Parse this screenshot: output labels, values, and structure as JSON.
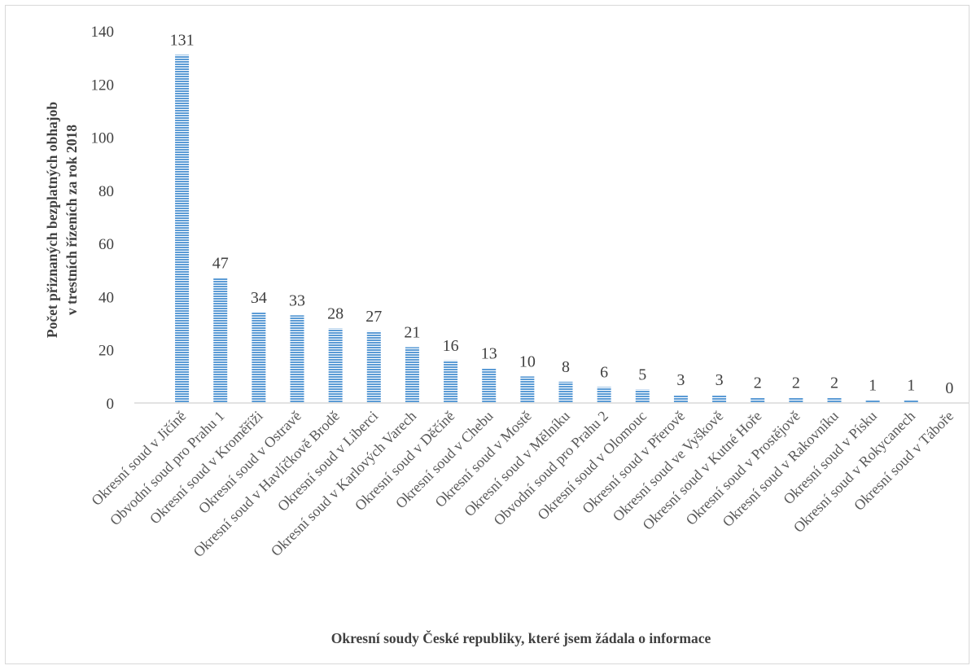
{
  "chart_data": {
    "type": "bar",
    "title": "",
    "ylabel": "Počet přiznaných bezplatných obhajob",
    "ylabel_line2": "v trestních řízeních za rok 2018",
    "xlabel": "Okresní soudy České republiky, které jsem žádala o informace",
    "ylim": [
      0,
      140
    ],
    "yticks": [
      "0",
      "20",
      "40",
      "60",
      "80",
      "100",
      "120",
      "140"
    ],
    "grid": false,
    "legend": "none",
    "bar_color": "#5b9bd5",
    "bar_pattern": "horizontal-stripes",
    "categories": [
      "Okresní soud v Jičíně",
      "Obvodní soud pro Prahu 1",
      "Okresní soud v Kroměříži",
      "Okresní soud v Ostravě",
      "Okresní soud v Havlíčkově Brodě",
      "Okresní soud v Liberci",
      "Okresní soud v Karlových Varech",
      "Okresní soud v Děčíně",
      "Okresní soud v Chebu",
      "Okresní soud v Mostě",
      "Okresní soud v Mělníku",
      "Obvodní soud pro Prahu 2",
      "Okresní soud v Olomouc",
      "Okresní soud v Přerově",
      "Okresní soud ve Vyškově",
      "Okresní soud v Kutné Hoře",
      "Okresní soud v Prostějově",
      "Okresní soud v Rakovníku",
      "Okresní soud v Písku",
      "Okresní soud v Rokycanech",
      "Okresní soud v Táboře"
    ],
    "values": [
      131,
      47,
      34,
      33,
      28,
      27,
      21,
      16,
      13,
      10,
      8,
      6,
      5,
      3,
      3,
      2,
      2,
      2,
      1,
      1,
      0
    ],
    "data_labels": [
      "131",
      "47",
      "34",
      "33",
      "28",
      "27",
      "21",
      "16",
      "13",
      "10",
      "8",
      "6",
      "5",
      "3",
      "3",
      "2",
      "2",
      "2",
      "1",
      "1",
      "0"
    ]
  }
}
